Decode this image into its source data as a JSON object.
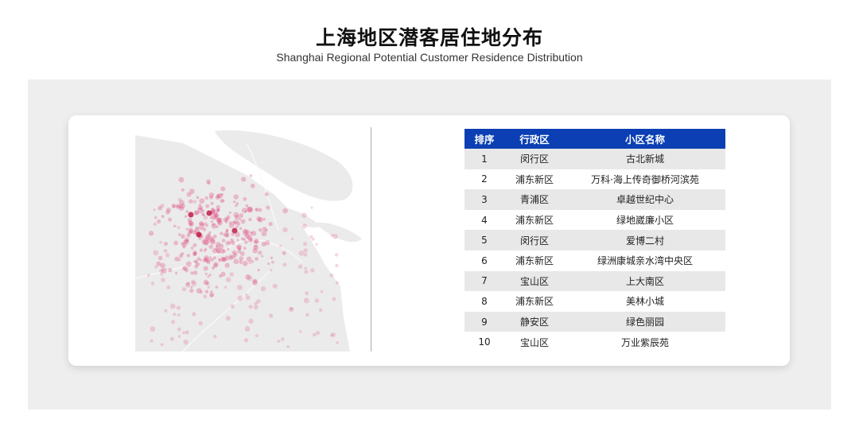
{
  "title": "上海地区潜客居住地分布",
  "subtitle": "Shanghai Regional Potential Customer Residence Distribution",
  "colors": {
    "header": "#0b3fb3",
    "panel": "#eeeeee",
    "dot": "#e05a8a"
  },
  "map": {
    "type": "dot-density-map",
    "region": "Shanghai"
  },
  "table": {
    "headers": [
      "排序",
      "行政区",
      "小区名称"
    ],
    "rows": [
      {
        "rank": "1",
        "district": "闵行区",
        "community": "古北新城"
      },
      {
        "rank": "2",
        "district": "浦东新区",
        "community": "万科·海上传奇御桥河滨苑"
      },
      {
        "rank": "3",
        "district": "青浦区",
        "community": "卓越世纪中心"
      },
      {
        "rank": "4",
        "district": "浦东新区",
        "community": "绿地崴廉小区"
      },
      {
        "rank": "5",
        "district": "闵行区",
        "community": "爱博二村"
      },
      {
        "rank": "6",
        "district": "浦东新区",
        "community": "绿洲康城亲水湾中央区"
      },
      {
        "rank": "7",
        "district": "宝山区",
        "community": "上大南区"
      },
      {
        "rank": "8",
        "district": "浦东新区",
        "community": "美林小城"
      },
      {
        "rank": "9",
        "district": "静安区",
        "community": "绿色丽园"
      },
      {
        "rank": "10",
        "district": "宝山区",
        "community": "万业紫辰苑"
      }
    ]
  }
}
